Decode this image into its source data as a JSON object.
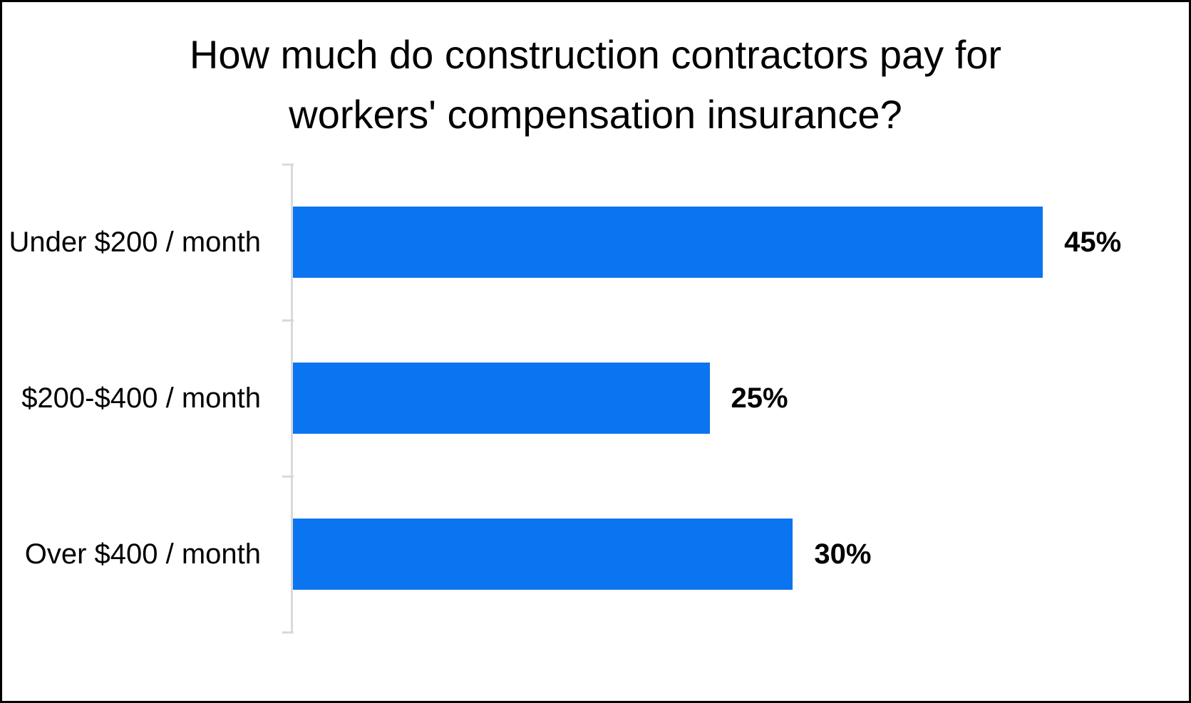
{
  "frame": {
    "background": "#ffffff",
    "border_color": "#000000"
  },
  "chart_data": {
    "type": "bar",
    "orientation": "horizontal",
    "title": "How much do construction contractors pay for workers' compensation insurance?",
    "title_lines": [
      "How much do construction contractors pay for",
      "workers' compensation insurance?"
    ],
    "categories": [
      "Under $200 / month",
      "$200-$400 / month",
      "Over $400 / month"
    ],
    "values": [
      45,
      25,
      30
    ],
    "data_labels": [
      "45%",
      "25%",
      "30%"
    ],
    "xlabel": "",
    "ylabel": "",
    "xlim": [
      0,
      50
    ],
    "grid": false,
    "legend": false,
    "bar_color": "#0b74f0",
    "axis_line_color": "#d9d9d9",
    "text_color": "#000000"
  }
}
